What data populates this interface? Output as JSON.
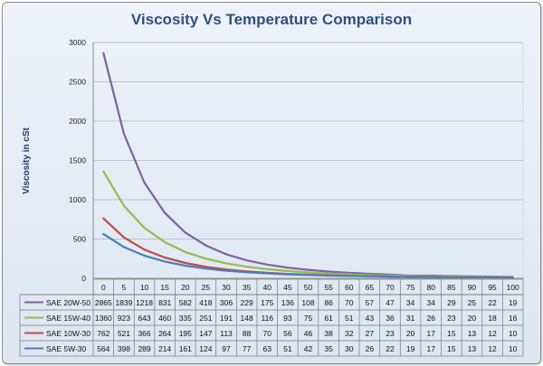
{
  "chart_data": {
    "type": "line",
    "title": "Viscosity Vs Temperature Comparison",
    "xlabel": "",
    "ylabel": "Viscosity in cSt",
    "ylim": [
      0,
      3000
    ],
    "yticks": [
      0,
      500,
      1000,
      1500,
      2000,
      2500,
      3000
    ],
    "grid": true,
    "legend": "bottom-left data table",
    "categories": [
      "0",
      "5",
      "10",
      "15",
      "20",
      "25",
      "30",
      "35",
      "40",
      "45",
      "50",
      "55",
      "60",
      "65",
      "70",
      "75",
      "80",
      "85",
      "90",
      "95",
      "100"
    ],
    "series": [
      {
        "name": "SAE 20W-50",
        "color": "#7b62a3",
        "values": [
          2865,
          1839,
          1218,
          831,
          582,
          418,
          306,
          229,
          175,
          136,
          108,
          86,
          70,
          57,
          47,
          34,
          34,
          29,
          25,
          22,
          19
        ]
      },
      {
        "name": "SAE 15W-40",
        "color": "#98b954",
        "values": [
          1360,
          923,
          643,
          460,
          335,
          251,
          191,
          148,
          116,
          93,
          75,
          61,
          51,
          43,
          36,
          31,
          26,
          23,
          20,
          18,
          16
        ]
      },
      {
        "name": "SAE 10W-30",
        "color": "#be4b48",
        "values": [
          762,
          521,
          366,
          264,
          195,
          147,
          113,
          88,
          70,
          56,
          46,
          38,
          32,
          27,
          23,
          20,
          17,
          15,
          13,
          12,
          10
        ]
      },
      {
        "name": "SAE 5W-30",
        "color": "#4a7ebb",
        "values": [
          564,
          398,
          289,
          214,
          161,
          124,
          97,
          77,
          63,
          51,
          42,
          35,
          30,
          26,
          22,
          19,
          17,
          15,
          13,
          12,
          10
        ]
      }
    ]
  }
}
